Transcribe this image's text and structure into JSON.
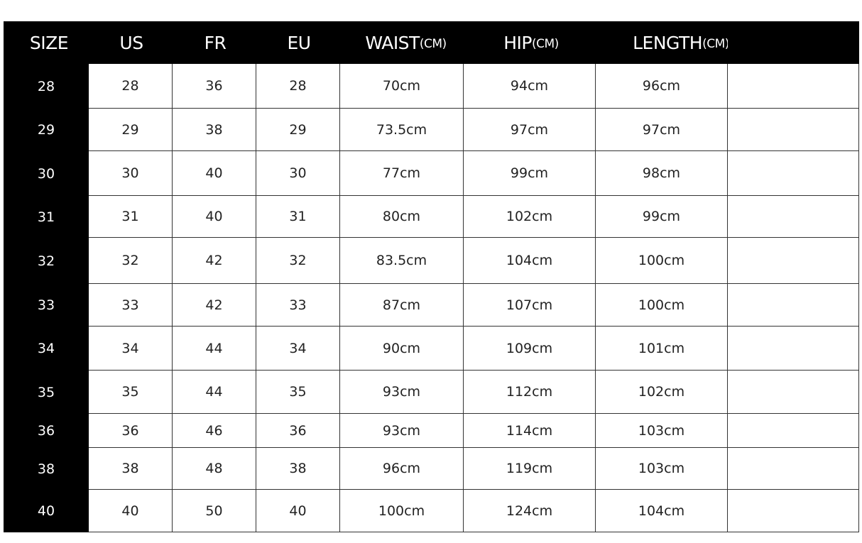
{
  "headers": [
    {
      "label": "SIZE",
      "unit": ""
    },
    {
      "label": "US",
      "unit": ""
    },
    {
      "label": "FR",
      "unit": ""
    },
    {
      "label": "EU",
      "unit": ""
    },
    {
      "label": "WAIST",
      "unit": "(CM)"
    },
    {
      "label": "HIP",
      "unit": "(CM)"
    },
    {
      "label": "LENGTH",
      "unit": "(CM)"
    },
    {
      "label": "",
      "unit": ""
    }
  ],
  "rows": [
    [
      "28",
      "28",
      "36",
      "28",
      "70cm",
      "94cm",
      "96cm",
      ""
    ],
    [
      "29",
      "29",
      "38",
      "29",
      "73.5cm",
      "97cm",
      "97cm",
      ""
    ],
    [
      "30",
      "30",
      "40",
      "30",
      "77cm",
      "99cm",
      "98cm",
      ""
    ],
    [
      "31",
      "31",
      "40",
      "31",
      "80cm",
      "102cm",
      "99cm",
      ""
    ],
    [
      "32",
      "32",
      "42",
      "32",
      "83.5cm",
      "104cm",
      "100cm",
      ""
    ],
    [
      "33",
      "33",
      "42",
      "33",
      "87cm",
      "107cm",
      "100cm",
      ""
    ],
    [
      "34",
      "34",
      "44",
      "34",
      "90cm",
      "109cm",
      "101cm",
      ""
    ],
    [
      "35",
      "35",
      "44",
      "35",
      "93cm",
      "112cm",
      "102cm",
      ""
    ],
    [
      "36",
      "36",
      "46",
      "36",
      "93cm",
      "114cm",
      "103cm",
      ""
    ],
    [
      "38",
      "38",
      "48",
      "38",
      "96cm",
      "119cm",
      "103cm",
      ""
    ],
    [
      "40",
      "40",
      "50",
      "40",
      "100cm",
      "124cm",
      "104cm",
      ""
    ]
  ],
  "colors": {
    "header_bg": "#000000",
    "header_text": "#ffffff",
    "cell_bg": "#ffffff",
    "grid": "#333333"
  }
}
